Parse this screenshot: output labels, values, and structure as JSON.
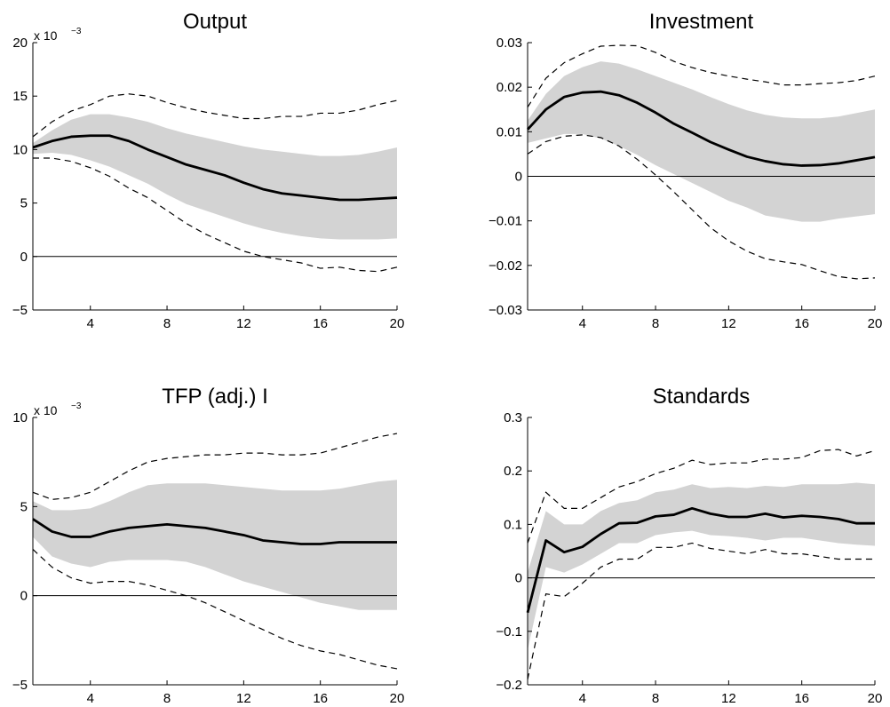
{
  "chart_data": [
    {
      "type": "line",
      "title": "Output",
      "scale_note": {
        "base": "x 10",
        "exponent": "−3"
      },
      "x": [
        1,
        2,
        3,
        4,
        5,
        6,
        7,
        8,
        9,
        10,
        11,
        12,
        13,
        14,
        15,
        16,
        17,
        18,
        19,
        20
      ],
      "xlim": [
        1,
        20
      ],
      "xticks": [
        "4",
        "8",
        "12",
        "16",
        "20"
      ],
      "xtick_values": [
        4,
        8,
        12,
        16,
        20
      ],
      "ylim": [
        -5,
        20
      ],
      "yticks": [
        "−5",
        "0",
        "5",
        "10",
        "15",
        "20"
      ],
      "ytick_values": [
        -5,
        0,
        5,
        10,
        15,
        20
      ],
      "zero_line": true,
      "grid": false,
      "series": [
        {
          "role": "band_upper",
          "values": [
            10.6,
            11.8,
            12.8,
            13.3,
            13.3,
            13.0,
            12.6,
            12.0,
            11.5,
            11.1,
            10.7,
            10.3,
            10.0,
            9.8,
            9.6,
            9.4,
            9.4,
            9.5,
            9.8,
            10.2
          ]
        },
        {
          "role": "band_lower",
          "values": [
            9.6,
            9.7,
            9.5,
            9.0,
            8.4,
            7.6,
            6.8,
            5.8,
            4.9,
            4.3,
            3.7,
            3.1,
            2.6,
            2.2,
            1.9,
            1.7,
            1.6,
            1.6,
            1.6,
            1.7
          ]
        },
        {
          "role": "upper_bound",
          "values": [
            11.2,
            12.6,
            13.6,
            14.2,
            15.0,
            15.2,
            15.0,
            14.4,
            13.9,
            13.5,
            13.2,
            12.9,
            12.9,
            13.1,
            13.1,
            13.4,
            13.4,
            13.7,
            14.2,
            14.6
          ]
        },
        {
          "role": "lower_bound",
          "values": [
            9.2,
            9.2,
            8.9,
            8.3,
            7.5,
            6.4,
            5.5,
            4.3,
            3.1,
            2.1,
            1.3,
            0.5,
            0.0,
            -0.3,
            -0.6,
            -1.1,
            -1.0,
            -1.3,
            -1.4,
            -1.0
          ]
        },
        {
          "role": "median",
          "values": [
            10.2,
            10.8,
            11.2,
            11.3,
            11.3,
            10.8,
            10.0,
            9.3,
            8.6,
            8.1,
            7.6,
            6.9,
            6.3,
            5.9,
            5.7,
            5.5,
            5.3,
            5.3,
            5.4,
            5.5
          ]
        }
      ]
    },
    {
      "type": "line",
      "title": "Investment",
      "x": [
        1,
        2,
        3,
        4,
        5,
        6,
        7,
        8,
        9,
        10,
        11,
        12,
        13,
        14,
        15,
        16,
        17,
        18,
        19,
        20
      ],
      "xlim": [
        1,
        20
      ],
      "xticks": [
        "4",
        "8",
        "12",
        "16",
        "20"
      ],
      "xtick_values": [
        4,
        8,
        12,
        16,
        20
      ],
      "ylim": [
        -0.03,
        0.03
      ],
      "yticks": [
        "−0.03",
        "−0.02",
        "−0.01",
        "0",
        "0.01",
        "0.02",
        "0.03"
      ],
      "ytick_values": [
        -0.03,
        -0.02,
        -0.01,
        0,
        0.01,
        0.02,
        0.03
      ],
      "zero_line": true,
      "grid": false,
      "series": [
        {
          "role": "band_upper",
          "values": [
            0.0125,
            0.0185,
            0.0225,
            0.0245,
            0.0258,
            0.0253,
            0.024,
            0.0225,
            0.021,
            0.0195,
            0.0178,
            0.0162,
            0.0148,
            0.0138,
            0.0132,
            0.013,
            0.013,
            0.0134,
            0.0142,
            0.015
          ]
        },
        {
          "role": "band_lower",
          "values": [
            0.0075,
            0.0085,
            0.0095,
            0.0095,
            0.0085,
            0.0068,
            0.0048,
            0.0025,
            0.0005,
            -0.0015,
            -0.0035,
            -0.0055,
            -0.007,
            -0.0088,
            -0.0095,
            -0.0102,
            -0.0102,
            -0.0095,
            -0.009,
            -0.0085
          ]
        },
        {
          "role": "upper_bound",
          "values": [
            0.0155,
            0.022,
            0.0255,
            0.0275,
            0.0292,
            0.0294,
            0.0293,
            0.0278,
            0.0258,
            0.0244,
            0.0233,
            0.0225,
            0.0218,
            0.0212,
            0.0205,
            0.0205,
            0.0208,
            0.021,
            0.0215,
            0.0225
          ]
        },
        {
          "role": "lower_bound",
          "values": [
            0.005,
            0.0078,
            0.009,
            0.0093,
            0.0087,
            0.0068,
            0.0038,
            0.0003,
            -0.0035,
            -0.0075,
            -0.0115,
            -0.0145,
            -0.0168,
            -0.0185,
            -0.0192,
            -0.0198,
            -0.0212,
            -0.0225,
            -0.023,
            -0.0228
          ]
        },
        {
          "role": "median",
          "values": [
            0.0105,
            0.015,
            0.0178,
            0.0188,
            0.019,
            0.0182,
            0.0165,
            0.0143,
            0.0118,
            0.0098,
            0.0077,
            0.006,
            0.0044,
            0.0034,
            0.0027,
            0.0024,
            0.0025,
            0.0029,
            0.0036,
            0.0043
          ]
        }
      ]
    },
    {
      "type": "line",
      "title": "TFP (adj.) I",
      "scale_note": {
        "base": "x 10",
        "exponent": "−3"
      },
      "x": [
        1,
        2,
        3,
        4,
        5,
        6,
        7,
        8,
        9,
        10,
        11,
        12,
        13,
        14,
        15,
        16,
        17,
        18,
        19,
        20
      ],
      "xlim": [
        1,
        20
      ],
      "xticks": [
        "4",
        "8",
        "12",
        "16",
        "20"
      ],
      "xtick_values": [
        4,
        8,
        12,
        16,
        20
      ],
      "ylim": [
        -5,
        10
      ],
      "yticks": [
        "−5",
        "0",
        "5",
        "10"
      ],
      "ytick_values": [
        -5,
        0,
        5,
        10
      ],
      "zero_line": true,
      "grid": false,
      "series": [
        {
          "role": "band_upper",
          "values": [
            5.3,
            4.8,
            4.8,
            4.9,
            5.3,
            5.8,
            6.2,
            6.3,
            6.3,
            6.3,
            6.2,
            6.1,
            6.0,
            5.9,
            5.9,
            5.9,
            6.0,
            6.2,
            6.4,
            6.5
          ]
        },
        {
          "role": "band_lower",
          "values": [
            3.3,
            2.2,
            1.8,
            1.6,
            1.9,
            2.0,
            2.0,
            2.0,
            1.9,
            1.6,
            1.2,
            0.8,
            0.5,
            0.2,
            -0.1,
            -0.4,
            -0.6,
            -0.8,
            -0.8,
            -0.8
          ]
        },
        {
          "role": "upper_bound",
          "values": [
            5.8,
            5.4,
            5.5,
            5.8,
            6.4,
            7.0,
            7.5,
            7.7,
            7.8,
            7.9,
            7.9,
            8.0,
            8.0,
            7.9,
            7.9,
            8.0,
            8.3,
            8.6,
            8.9,
            9.1
          ]
        },
        {
          "role": "lower_bound",
          "values": [
            2.6,
            1.6,
            1.0,
            0.7,
            0.8,
            0.8,
            0.6,
            0.3,
            0.0,
            -0.4,
            -0.9,
            -1.4,
            -1.9,
            -2.4,
            -2.8,
            -3.1,
            -3.3,
            -3.6,
            -3.9,
            -4.1
          ]
        },
        {
          "role": "median",
          "values": [
            4.3,
            3.6,
            3.3,
            3.3,
            3.6,
            3.8,
            3.9,
            4.0,
            3.9,
            3.8,
            3.6,
            3.4,
            3.1,
            3.0,
            2.9,
            2.9,
            3.0,
            3.0,
            3.0,
            3.0
          ]
        }
      ]
    },
    {
      "type": "line",
      "title": "Standards",
      "x": [
        1,
        2,
        3,
        4,
        5,
        6,
        7,
        8,
        9,
        10,
        11,
        12,
        13,
        14,
        15,
        16,
        17,
        18,
        19,
        20
      ],
      "xlim": [
        1,
        20
      ],
      "xticks": [
        "4",
        "8",
        "12",
        "16",
        "20"
      ],
      "xtick_values": [
        4,
        8,
        12,
        16,
        20
      ],
      "ylim": [
        -0.2,
        0.3
      ],
      "yticks": [
        "−0.2",
        "−0.1",
        "0",
        "0.1",
        "0.2",
        "0.3"
      ],
      "ytick_values": [
        -0.2,
        -0.1,
        0,
        0.1,
        0.2,
        0.3
      ],
      "zero_line": true,
      "grid": false,
      "series": [
        {
          "role": "band_upper",
          "values": [
            0.01,
            0.125,
            0.1,
            0.1,
            0.125,
            0.14,
            0.145,
            0.16,
            0.165,
            0.175,
            0.168,
            0.17,
            0.168,
            0.172,
            0.17,
            0.175,
            0.175,
            0.175,
            0.178,
            0.175
          ]
        },
        {
          "role": "band_lower",
          "values": [
            -0.135,
            0.02,
            0.01,
            0.025,
            0.045,
            0.065,
            0.065,
            0.08,
            0.085,
            0.088,
            0.08,
            0.078,
            0.075,
            0.07,
            0.075,
            0.075,
            0.07,
            0.065,
            0.062,
            0.06
          ]
        },
        {
          "role": "upper_bound",
          "values": [
            0.065,
            0.16,
            0.13,
            0.13,
            0.15,
            0.17,
            0.18,
            0.195,
            0.205,
            0.22,
            0.212,
            0.215,
            0.215,
            0.222,
            0.222,
            0.225,
            0.238,
            0.24,
            0.228,
            0.238
          ]
        },
        {
          "role": "lower_bound",
          "values": [
            -0.19,
            -0.03,
            -0.035,
            -0.01,
            0.02,
            0.035,
            0.035,
            0.057,
            0.057,
            0.065,
            0.055,
            0.05,
            0.045,
            0.053,
            0.045,
            0.045,
            0.04,
            0.035,
            0.035,
            0.035
          ]
        },
        {
          "role": "median",
          "values": [
            -0.065,
            0.07,
            0.048,
            0.058,
            0.082,
            0.102,
            0.103,
            0.115,
            0.118,
            0.13,
            0.12,
            0.114,
            0.114,
            0.12,
            0.113,
            0.116,
            0.114,
            0.11,
            0.102,
            0.102
          ]
        }
      ]
    }
  ]
}
